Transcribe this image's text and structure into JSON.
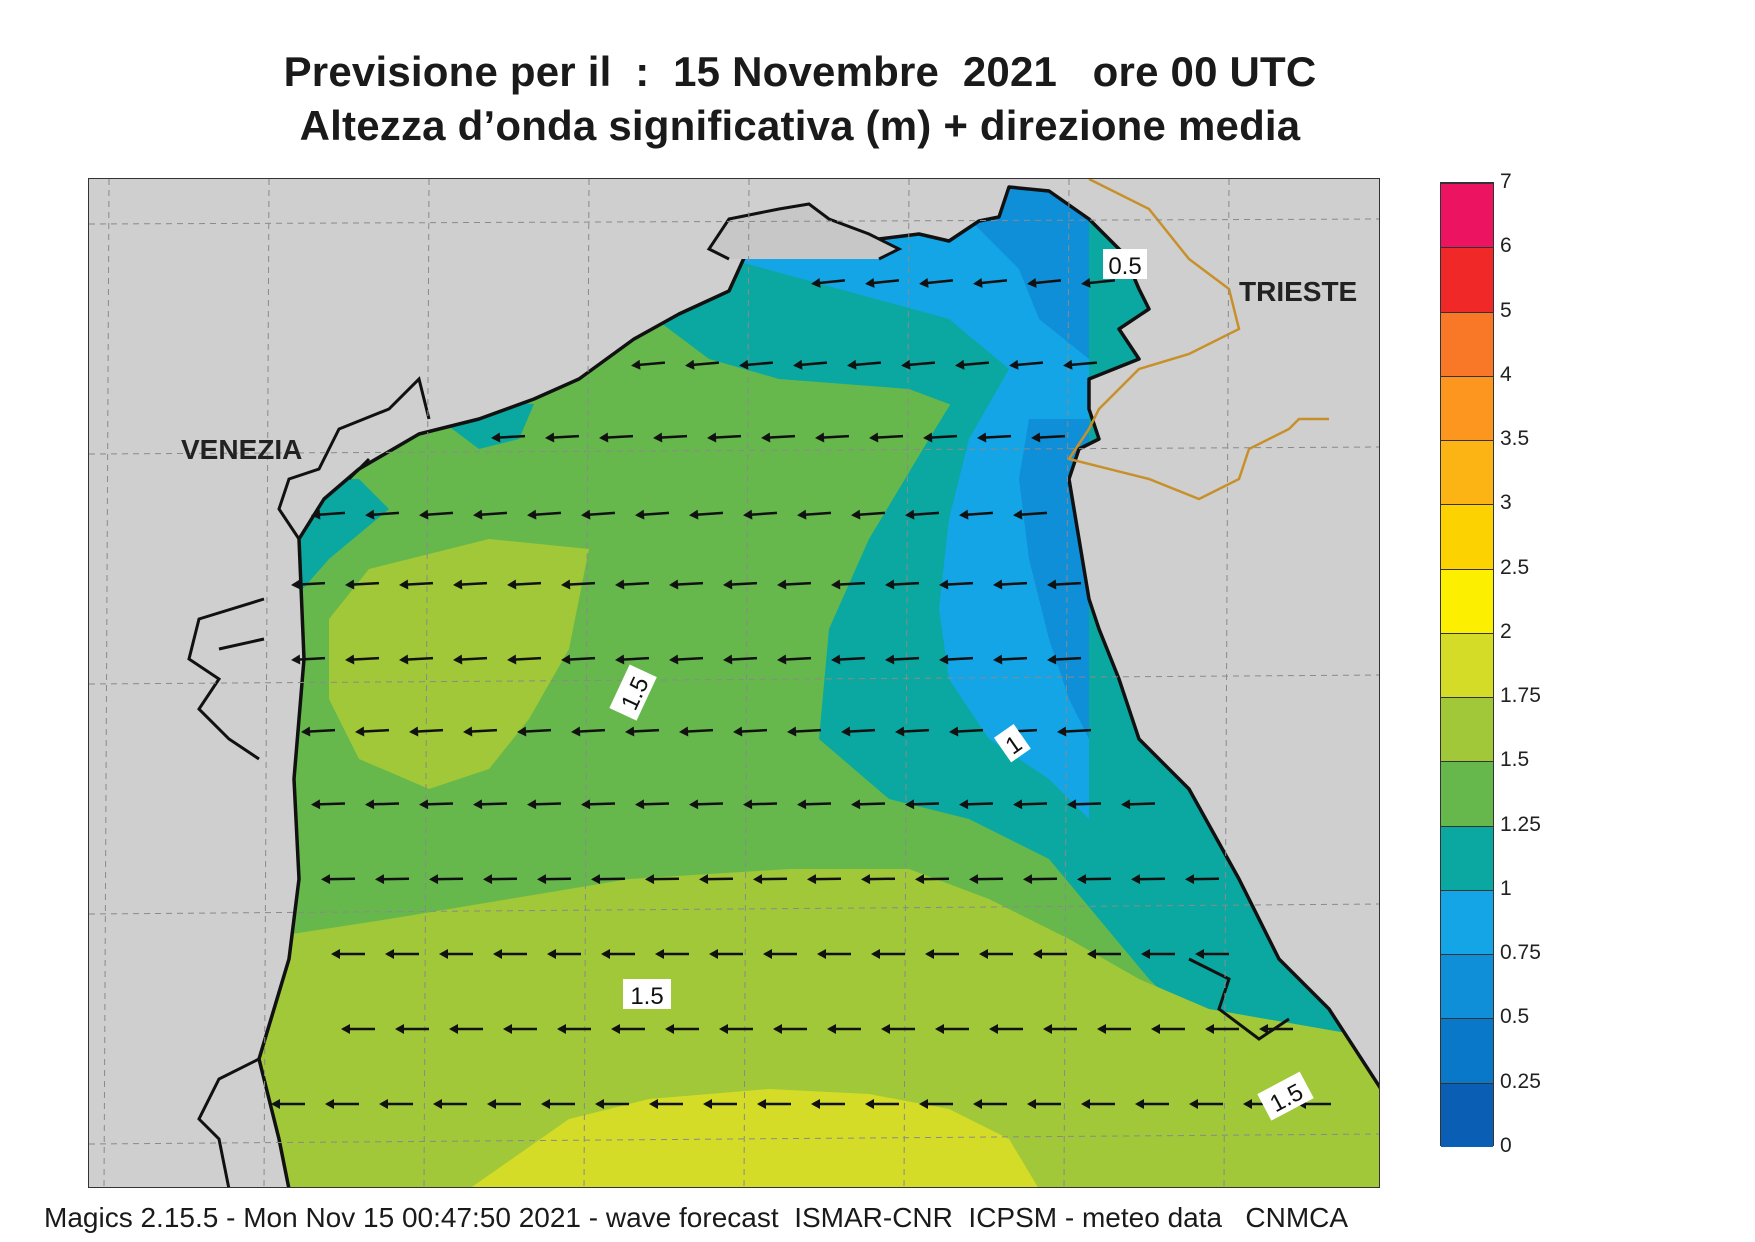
{
  "header": {
    "title_line1": "Previsione per il  :  15 Novembre  2021   ore 00 UTC",
    "title_line2": "Altezza d’onda significativa (m) + direzione media"
  },
  "map": {
    "labels": {
      "venezia": "VENEZIA",
      "trieste": "TRIESTE"
    },
    "contour_labels": [
      "0.5",
      "1",
      "1.5",
      "1.5",
      "1.5"
    ],
    "land_color": "#cfcfcf",
    "coast_color": "#111111",
    "border_color": "#c8902a",
    "arrow_direction": "west"
  },
  "legend": {
    "levels": [
      "0",
      "0.25",
      "0.5",
      "0.75",
      "1",
      "1.25",
      "1.5",
      "1.75",
      "2",
      "2.5",
      "3",
      "3.5",
      "4",
      "5",
      "6",
      "7"
    ],
    "colors": [
      "#0a5fb4",
      "#0a78c8",
      "#0f8fd8",
      "#14a5e6",
      "#0aa8a0",
      "#66b84c",
      "#a0c838",
      "#d4dc28",
      "#fcf000",
      "#fcd200",
      "#fcb414",
      "#fc961e",
      "#f87828",
      "#f02828",
      "#ec1460"
    ]
  },
  "footer": {
    "text": "Magics 2.15.5 - Mon Nov 15 00:47:50 2021 - wave forecast  ISMAR-CNR  ICPSM - meteo data   CNMCA"
  }
}
